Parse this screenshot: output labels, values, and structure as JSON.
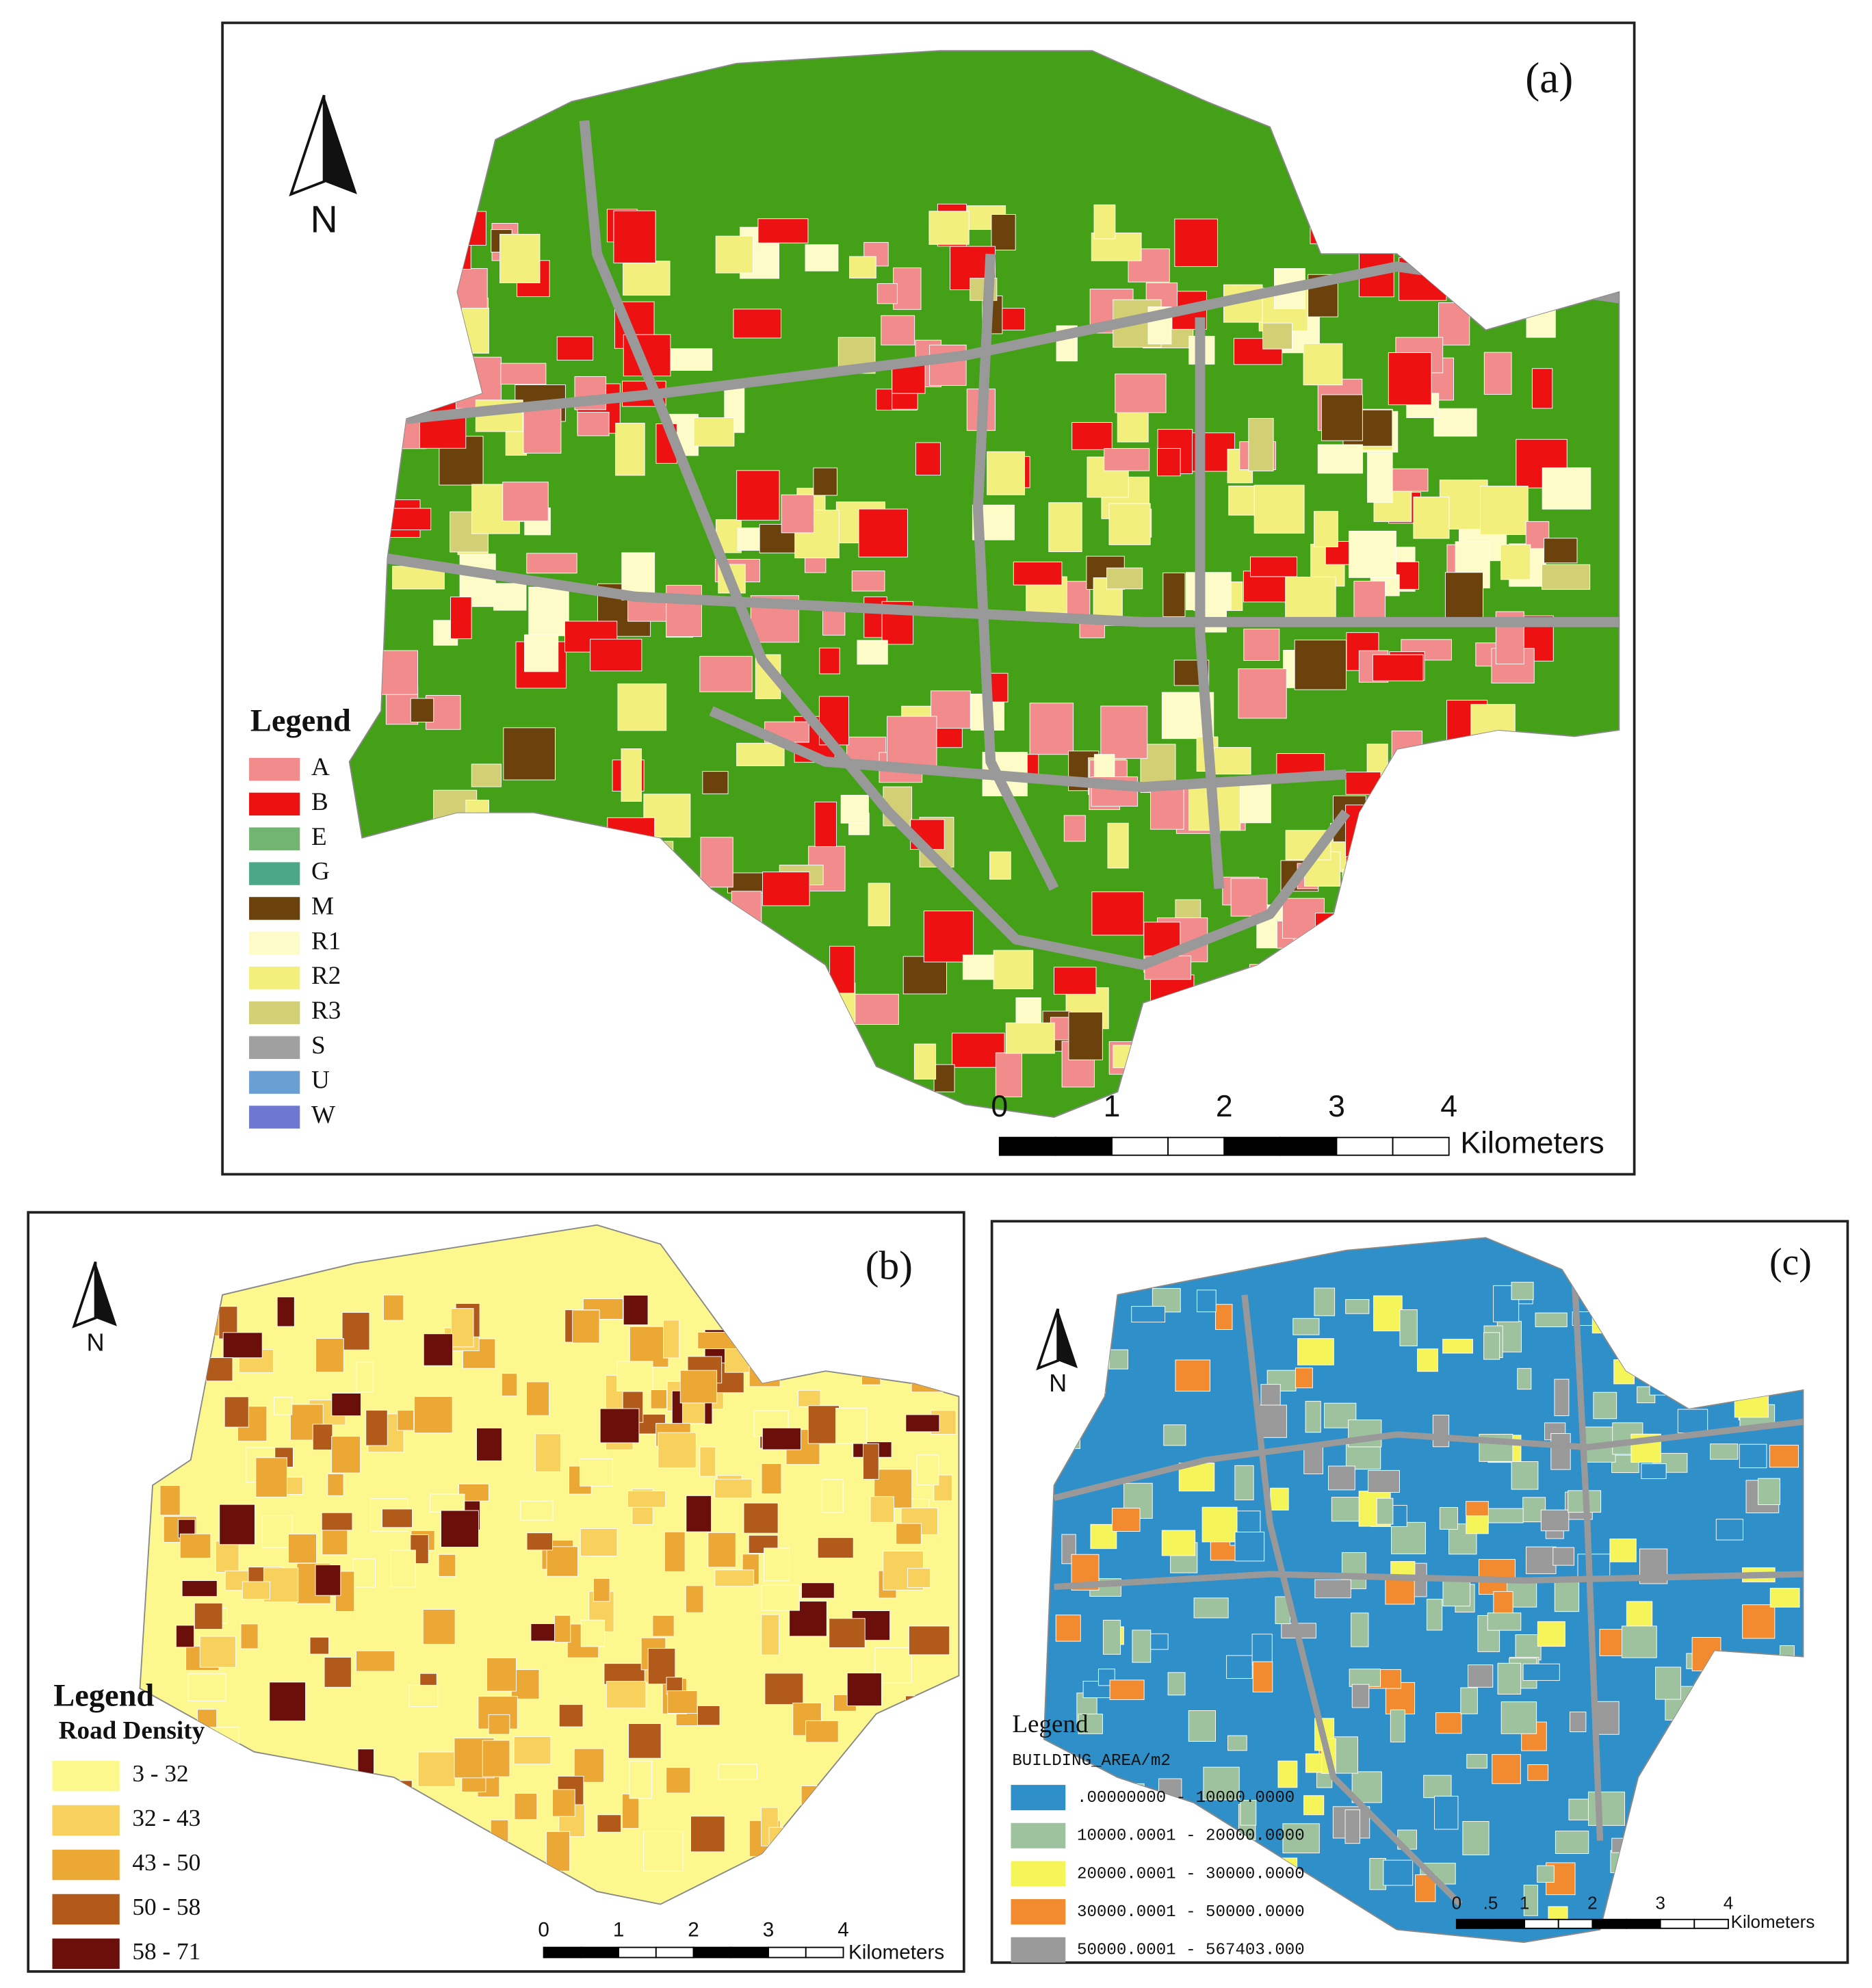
{
  "panels": [
    {
      "label": "(a)",
      "north": "N",
      "legend": {
        "title": "Legend",
        "items": [
          {
            "label": "A",
            "color": "#f28b8b"
          },
          {
            "label": "B",
            "color": "#ee1111"
          },
          {
            "label": "E",
            "color": "#72b472"
          },
          {
            "label": "G",
            "color": "#4aa888"
          },
          {
            "label": "M",
            "color": "#6b420c"
          },
          {
            "label": "R1",
            "color": "#fdfbc8"
          },
          {
            "label": "R2",
            "color": "#f3ef7c"
          },
          {
            "label": "R3",
            "color": "#d2cf74"
          },
          {
            "label": "S",
            "color": "#a0a0a0"
          },
          {
            "label": "U",
            "color": "#6a9fd4"
          },
          {
            "label": "W",
            "color": "#6e78d0"
          }
        ]
      },
      "scale": {
        "ticks": [
          "0",
          "1",
          "2",
          "3",
          "4"
        ],
        "unit": "Kilometers"
      }
    },
    {
      "label": "(b)",
      "north": "N",
      "legend": {
        "title": "Legend",
        "subtitle": "Road Density",
        "items": [
          {
            "label": "3 - 32",
            "color": "#fdf88e"
          },
          {
            "label": "32 - 43",
            "color": "#f8d05c"
          },
          {
            "label": "43 - 50",
            "color": "#eca834"
          },
          {
            "label": "50 - 58",
            "color": "#b25a1a"
          },
          {
            "label": "58 - 71",
            "color": "#6a0f0a"
          }
        ]
      },
      "scale": {
        "ticks": [
          "0",
          "1",
          "2",
          "3",
          "4"
        ],
        "unit": "Kilometers"
      }
    },
    {
      "label": "(c)",
      "north": "N",
      "legend": {
        "title": "Legend",
        "subtitle": "BUILDING_AREA/m2",
        "items": [
          {
            "label": ".00000000 - 10000.0000",
            "color": "#2e8fc9"
          },
          {
            "label": "10000.0001 - 20000.0000",
            "color": "#9fc29e"
          },
          {
            "label": "20000.0001 - 30000.0000",
            "color": "#f5f55a"
          },
          {
            "label": "30000.0001 - 50000.0000",
            "color": "#f28b30"
          },
          {
            "label": "50000.0001 - 567403.000",
            "color": "#9a9a9a"
          }
        ]
      },
      "scale": {
        "ticks": [
          "0",
          ".5",
          "1",
          "2",
          "3",
          "4"
        ],
        "unit": "Kilometers"
      }
    }
  ]
}
